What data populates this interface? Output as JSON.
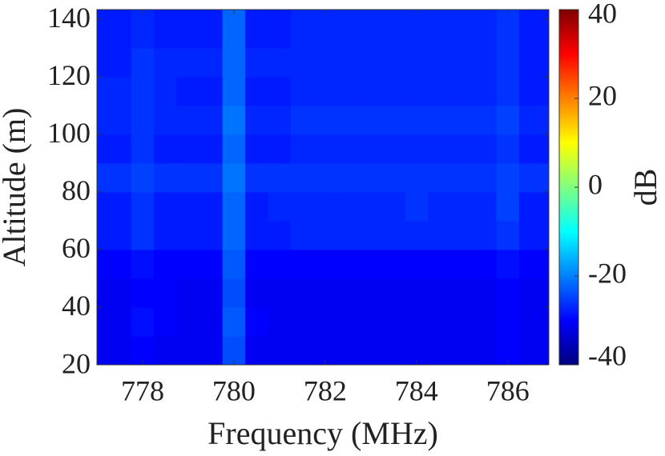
{
  "chart_data": {
    "type": "heatmap",
    "xlabel": "Frequency (MHz)",
    "ylabel": "Altitude (m)",
    "colorbar_label": "dB",
    "colormap": "jet",
    "x": [
      777,
      777.5,
      778,
      778.5,
      779,
      779.5,
      780,
      780.5,
      781,
      781.5,
      782,
      782.5,
      783,
      783.5,
      784,
      784.5,
      785,
      785.5,
      786,
      786.5
    ],
    "y": [
      25,
      35,
      45,
      55,
      65,
      75,
      85,
      95,
      105,
      115,
      125,
      135
    ],
    "z": [
      [
        -31,
        -31,
        -30,
        -31,
        -31,
        -31,
        -24,
        -31,
        -31,
        -31,
        -31,
        -31,
        -31,
        -31,
        -31,
        -31,
        -31,
        -31,
        -30,
        -31
      ],
      [
        -31,
        -31,
        -29,
        -30,
        -31,
        -31,
        -23,
        -30,
        -31,
        -31,
        -31,
        -31,
        -31,
        -31,
        -31,
        -31,
        -31,
        -31,
        -30,
        -31
      ],
      [
        -31,
        -31,
        -30,
        -30,
        -31,
        -31,
        -24,
        -31,
        -31,
        -31,
        -31,
        -31,
        -31,
        -31,
        -31,
        -31,
        -31,
        -31,
        -30,
        -31
      ],
      [
        -30,
        -30,
        -29,
        -30,
        -30,
        -30,
        -23,
        -30,
        -30,
        -30,
        -30,
        -30,
        -30,
        -30,
        -30,
        -30,
        -30,
        -30,
        -29,
        -30
      ],
      [
        -28,
        -28,
        -26,
        -28,
        -28,
        -28,
        -22,
        -28,
        -28,
        -27,
        -27,
        -27,
        -27,
        -27,
        -27,
        -27,
        -27,
        -27,
        -26,
        -28
      ],
      [
        -28,
        -28,
        -26,
        -28,
        -28,
        -28,
        -22,
        -28,
        -27,
        -27,
        -27,
        -27,
        -27,
        -27,
        -26,
        -27,
        -27,
        -27,
        -25,
        -28
      ],
      [
        -26,
        -26,
        -25,
        -26,
        -26,
        -26,
        -21,
        -26,
        -26,
        -26,
        -26,
        -26,
        -26,
        -26,
        -26,
        -26,
        -26,
        -26,
        -25,
        -26
      ],
      [
        -28,
        -28,
        -26,
        -28,
        -28,
        -28,
        -22,
        -28,
        -28,
        -27,
        -27,
        -27,
        -27,
        -27,
        -27,
        -27,
        -27,
        -27,
        -26,
        -28
      ],
      [
        -27,
        -27,
        -26,
        -27,
        -27,
        -27,
        -21,
        -27,
        -27,
        -26,
        -26,
        -26,
        -26,
        -26,
        -26,
        -26,
        -26,
        -26,
        -25,
        -27
      ],
      [
        -27,
        -27,
        -26,
        -27,
        -28,
        -28,
        -22,
        -28,
        -28,
        -27,
        -27,
        -27,
        -27,
        -27,
        -27,
        -27,
        -27,
        -27,
        -26,
        -28
      ],
      [
        -28,
        -28,
        -26,
        -27,
        -27,
        -27,
        -22,
        -27,
        -27,
        -27,
        -27,
        -27,
        -27,
        -27,
        -27,
        -27,
        -27,
        -27,
        -26,
        -28
      ],
      [
        -28,
        -28,
        -27,
        -28,
        -28,
        -28,
        -22,
        -28,
        -28,
        -27,
        -27,
        -27,
        -27,
        -27,
        -27,
        -27,
        -27,
        -27,
        -26,
        -28
      ]
    ],
    "xlim": [
      777,
      786.9
    ],
    "xticks": [
      778,
      780,
      782,
      784,
      786
    ],
    "ylim": [
      20,
      143.3
    ],
    "yticks": [
      20,
      40,
      60,
      80,
      100,
      120,
      140
    ],
    "clim": [
      -40,
      40
    ],
    "cticks": [
      -40,
      -20,
      0,
      20,
      40
    ]
  }
}
